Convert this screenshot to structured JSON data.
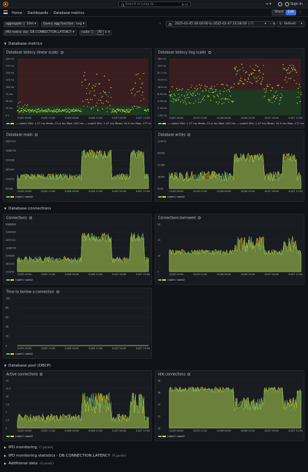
{
  "topbar": {
    "search_placeholder": "Search or jump to...",
    "search_shortcut": "⌘+k",
    "plus": "+ ▾",
    "signin": "Sign in"
  },
  "breadcrumb": [
    "Home",
    "Dashboards",
    "Database metrics"
  ],
  "actions": {
    "share": "Share",
    "edit": "Edit",
    "more": "⋮"
  },
  "variables": [
    {
      "label": "aggregate",
      "value": "10m"
    },
    {
      "label": "Query agg function",
      "value": "avg"
    }
  ],
  "variables2": [
    {
      "label": "IPD metric stats",
      "value": "DB.CONNECTION.LATENCY"
    },
    {
      "label": "node",
      "value": "All"
    }
  ],
  "timepicker": {
    "range": "2025-01-05 00:00:00 to 2025-01-07 23:58:59",
    "tz": "UTC"
  },
  "refresh": "Refresh",
  "rows": {
    "db_metrics": "Database metrics",
    "db_connections": "Database connections",
    "db_pool": "Database pool (DBCP)",
    "ipd_monitoring": "IPD monitoring",
    "ipd_monitoring_count": "(7 panels)",
    "ipd_stats": "IPD monitoring statistics - DB.CONNECTION.LATENCY",
    "ipd_stats_count": "(6 panels)",
    "additional": "Additional data",
    "additional_count": "(4 panels)"
  },
  "colors": {
    "node1": "#73bf69",
    "node2": "#fade2a",
    "threshold_red": "#3a1d1f",
    "threshold_green": "#1d3a21"
  },
  "panels": [
    {
      "id": "latency-linear",
      "title": "Database latency (linear scale)",
      "yticks": [
        "200 ms",
        "175 ms",
        "150 ms",
        "125 ms",
        "100 ms",
        "75 ms",
        "50 ms",
        "25 ms",
        "0 s"
      ],
      "xticks": [
        "01/05 00:00",
        "01/05 12:00",
        "01/06 00:00",
        "01/06 12:00",
        "01/07 00:00",
        "01/07 12:00"
      ],
      "legend": "— node1  Min: 1.37 ms  Mean: 23.4 ms  Max: 167 ms  — node2  Min: 1.47 ms  Mean: 34.0 ms  Max: 177 ms"
    },
    {
      "id": "latency-log",
      "title": "Database latency (log scale)",
      "yticks": [
        "269 ms",
        "134 ms",
        "67.1 ms",
        "33.6 ms",
        "16.8 ms",
        "8.39 ms",
        "4.19 ms",
        "2.10 ms",
        "1.05 ms"
      ],
      "xticks": [
        "01/05 00:00",
        "01/05 12:00",
        "01/06 00:00",
        "01/06 12:00",
        "01/07 00:00",
        "01/07 12:00"
      ],
      "legend": "— node1  Min: 1.37 ms  Mean: 23.4 ms  Max: 167 ms  — node2  Min: 1.47 ms  Mean: 34.0 ms  Max: 177 ms"
    },
    {
      "id": "db-reads",
      "title": "Database reads",
      "yticks": [
        "2097152",
        "1048576",
        "524288",
        "262144",
        "131072",
        "65536"
      ],
      "xticks": [
        "01/05 00:00",
        "01/05 12:00",
        "01/06 00:00",
        "01/06 12:00",
        "01/07 00:00",
        "01/07 12:00"
      ],
      "legend": "node1   node2"
    },
    {
      "id": "db-writes",
      "title": "Database writes",
      "yticks": [
        "131072",
        "65536",
        "32768",
        "16384",
        "8192"
      ],
      "xticks": [
        "01/05 00:00",
        "01/05 12:00",
        "01/06 00:00",
        "01/06 12:00",
        "01/07 00:00",
        "01/07 12:00"
      ],
      "legend": "node1   node2"
    },
    {
      "id": "connections",
      "title": "Connections",
      "yticks": [
        "8388608",
        "4194304",
        "2097152",
        "1048576",
        "524288",
        "262144",
        "131072"
      ],
      "xticks": [
        "01/05 00:00",
        "01/05 12:00",
        "01/06 00:00",
        "01/06 12:00",
        "01/07 00:00",
        "01/07 12:00"
      ],
      "legend": "node1   node2"
    },
    {
      "id": "conn-borrowed",
      "title": "Connections borrowed",
      "yticks": [
        "20",
        "15",
        "10",
        "5"
      ],
      "xticks": [
        "01/05 00:00",
        "01/05 12:00",
        "01/06 00:00",
        "01/06 12:00",
        "01/07 00:00",
        "01/07 12:00"
      ],
      "legend": "node1   node2"
    },
    {
      "id": "time-borrow",
      "title": "Time to borrow a connection",
      "yticks": [
        "100",
        "80",
        "60",
        "40",
        "20",
        "0"
      ],
      "xticks": [
        "01/05 00:00",
        "01/05 12:00",
        "01/06 00:00",
        "01/06 12:00",
        "01/07 00:00",
        "01/07 12:00"
      ],
      "legend": "node1   node2"
    },
    {
      "id": "active-conn",
      "title": "Active connections",
      "yticks": [
        "15",
        "12.5",
        "10",
        "7.5",
        "5",
        "2.5",
        "0"
      ],
      "xticks": [
        "01/05 00:00",
        "01/05 12:00",
        "01/06 00:00",
        "01/06 12:00",
        "01/07 00:00",
        "01/07 12:00"
      ],
      "legend": "node1   node2"
    },
    {
      "id": "idle-conn",
      "title": "Idle connections",
      "yticks": [
        "18",
        "16",
        "14",
        "12",
        "10"
      ],
      "xticks": [
        "01/05 00:00",
        "01/05 12:00",
        "01/06 00:00",
        "01/06 12:00",
        "01/07 00:00",
        "01/07 12:00"
      ],
      "legend": "node1   node2"
    }
  ]
}
